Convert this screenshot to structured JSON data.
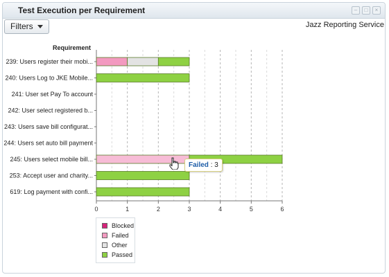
{
  "widget": {
    "title": "Test Execution per Requirement",
    "provider": "Jazz Reporting Service"
  },
  "toolbar": {
    "filters_label": "Filters"
  },
  "icons": {
    "filters_caret": "chevron-down-icon",
    "cursor": "hand-pointer-icon"
  },
  "chart_data": {
    "type": "bar",
    "orientation": "horizontal",
    "stacked": true,
    "category_axis_title": "Requirement",
    "categories": [
      "239: Users register their mobi...",
      "240: Users Log to JKE Mobile...",
      "241: User set Pay To account",
      "242: User select registered b...",
      "243: Users save bill configurat...",
      "244: Users set auto bill payment",
      "245: Users select mobile bill...",
      "253: Accept user and charity...",
      "619: Log payment with confi..."
    ],
    "series": [
      {
        "name": "Blocked",
        "color": "#d6237a",
        "values": [
          0,
          0,
          0,
          0,
          0,
          0,
          0,
          0,
          0
        ]
      },
      {
        "name": "Failed",
        "color": "#f39ac0",
        "values": [
          1,
          0,
          0,
          0,
          0,
          0,
          3,
          0,
          0
        ]
      },
      {
        "name": "Other",
        "color": "#e3e3e3",
        "values": [
          1,
          0,
          0,
          0,
          0,
          0,
          0,
          0,
          0
        ]
      },
      {
        "name": "Passed",
        "color": "#8ed143",
        "values": [
          1,
          3,
          0,
          0,
          0,
          0,
          3,
          3,
          3
        ]
      }
    ],
    "xlim": [
      0,
      6
    ],
    "x_ticks": [
      0,
      1,
      2,
      3,
      4,
      5,
      6
    ],
    "grid": "vertical-dashed",
    "legend_position": "bottom-left",
    "tooltip": {
      "series": "Failed",
      "value": "3"
    }
  }
}
